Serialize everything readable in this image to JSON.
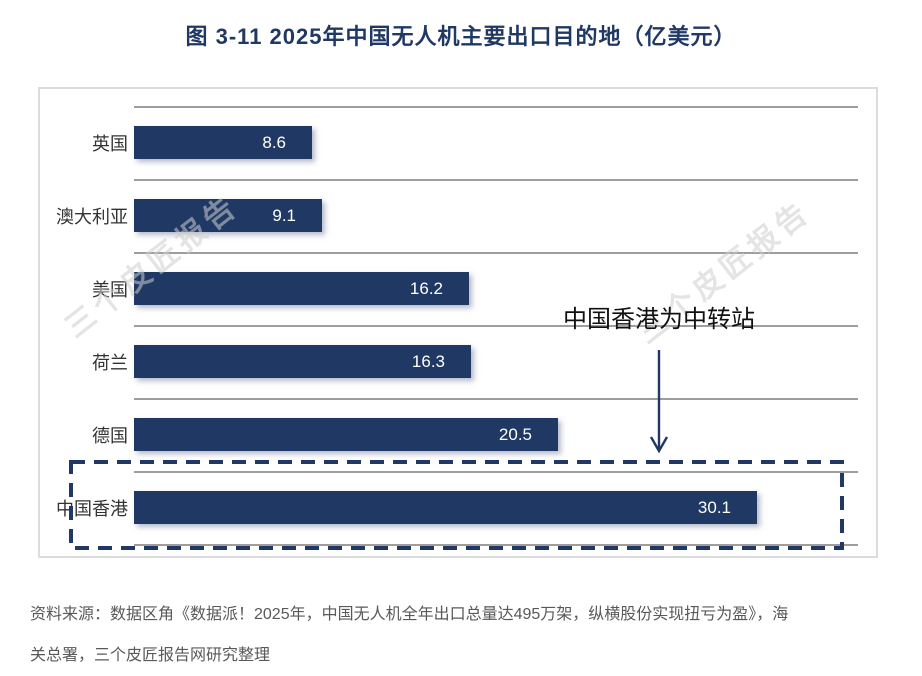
{
  "title": "图 3-11 2025年中国无人机主要出口目的地（亿美元）",
  "chart_data": {
    "type": "bar",
    "orientation": "horizontal",
    "title": "图 3-11 2025年中国无人机主要出口目的地（亿美元）",
    "unit": "亿美元",
    "categories": [
      "英国",
      "澳大利亚",
      "美国",
      "荷兰",
      "德国",
      "中国香港"
    ],
    "values": [
      8.6,
      9.1,
      16.2,
      16.3,
      20.5,
      30.1
    ],
    "xlim": [
      0,
      35
    ],
    "grid": true,
    "value_labels": [
      "8.6",
      "9.1",
      "16.2",
      "16.3",
      "20.5",
      "30.1"
    ],
    "bar_color": "#1f3864",
    "highlighted_category": "中国香港",
    "annotation": "中国香港为中转站"
  },
  "annotation": {
    "label": "中国香港为中转站"
  },
  "watermark": {
    "text": "三个皮匠报告"
  },
  "source": {
    "line1": "资料来源：数据区角《数据派！2025年，中国无人机全年出口总量达495万架，纵横股份实现扭亏为盈》，海",
    "line2": "关总署，三个皮匠报告网研究整理"
  },
  "colors": {
    "bar": "#1f3864",
    "title": "#1f3864",
    "gridline": "#9e9e9e",
    "annotation_arrow": "#1f3864",
    "highlight_border": "#1f3864",
    "source_text": "#595959"
  }
}
